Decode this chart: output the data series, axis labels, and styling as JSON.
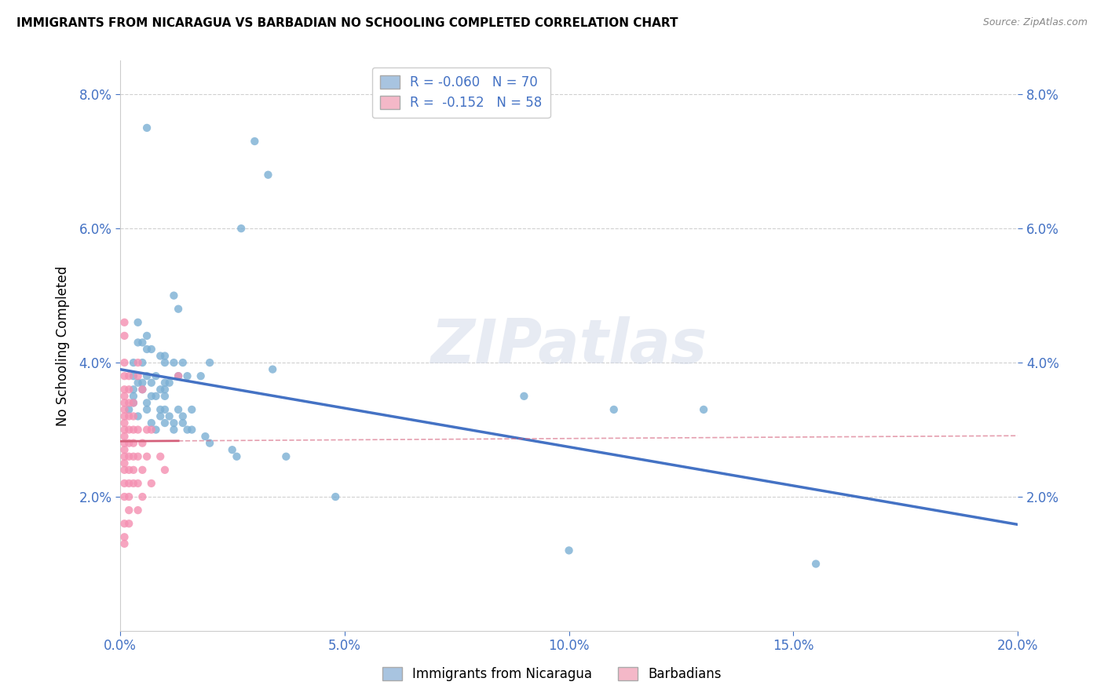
{
  "title": "IMMIGRANTS FROM NICARAGUA VS BARBADIAN NO SCHOOLING COMPLETED CORRELATION CHART",
  "source": "Source: ZipAtlas.com",
  "xlabel_ticks": [
    "0.0%",
    "5.0%",
    "10.0%",
    "15.0%",
    "20.0%"
  ],
  "ylabel_ticks": [
    "2.0%",
    "4.0%",
    "6.0%",
    "8.0%"
  ],
  "ylabel_label": "No Schooling Completed",
  "xlim": [
    0.0,
    0.2
  ],
  "ylim": [
    0.0,
    0.085
  ],
  "blue_color": "#7bafd4",
  "pink_color": "#f48fb1",
  "blue_line_color": "#4472c4",
  "pink_line_color": "#d45f7a",
  "legend_blue_fill": "#a8c4e0",
  "legend_pink_fill": "#f4b8c8",
  "blue_scatter": [
    [
      0.006,
      0.075
    ],
    [
      0.03,
      0.073
    ],
    [
      0.033,
      0.068
    ],
    [
      0.027,
      0.06
    ],
    [
      0.012,
      0.05
    ],
    [
      0.013,
      0.048
    ],
    [
      0.004,
      0.046
    ],
    [
      0.006,
      0.044
    ],
    [
      0.005,
      0.043
    ],
    [
      0.004,
      0.043
    ],
    [
      0.006,
      0.042
    ],
    [
      0.007,
      0.042
    ],
    [
      0.009,
      0.041
    ],
    [
      0.01,
      0.041
    ],
    [
      0.003,
      0.04
    ],
    [
      0.005,
      0.04
    ],
    [
      0.01,
      0.04
    ],
    [
      0.012,
      0.04
    ],
    [
      0.014,
      0.04
    ],
    [
      0.02,
      0.04
    ],
    [
      0.034,
      0.039
    ],
    [
      0.003,
      0.038
    ],
    [
      0.006,
      0.038
    ],
    [
      0.008,
      0.038
    ],
    [
      0.013,
      0.038
    ],
    [
      0.015,
      0.038
    ],
    [
      0.018,
      0.038
    ],
    [
      0.004,
      0.037
    ],
    [
      0.005,
      0.037
    ],
    [
      0.007,
      0.037
    ],
    [
      0.01,
      0.037
    ],
    [
      0.011,
      0.037
    ],
    [
      0.003,
      0.036
    ],
    [
      0.005,
      0.036
    ],
    [
      0.009,
      0.036
    ],
    [
      0.01,
      0.036
    ],
    [
      0.003,
      0.035
    ],
    [
      0.007,
      0.035
    ],
    [
      0.008,
      0.035
    ],
    [
      0.01,
      0.035
    ],
    [
      0.003,
      0.034
    ],
    [
      0.006,
      0.034
    ],
    [
      0.002,
      0.033
    ],
    [
      0.006,
      0.033
    ],
    [
      0.009,
      0.033
    ],
    [
      0.01,
      0.033
    ],
    [
      0.013,
      0.033
    ],
    [
      0.016,
      0.033
    ],
    [
      0.004,
      0.032
    ],
    [
      0.009,
      0.032
    ],
    [
      0.011,
      0.032
    ],
    [
      0.014,
      0.032
    ],
    [
      0.007,
      0.031
    ],
    [
      0.01,
      0.031
    ],
    [
      0.012,
      0.031
    ],
    [
      0.014,
      0.031
    ],
    [
      0.008,
      0.03
    ],
    [
      0.012,
      0.03
    ],
    [
      0.015,
      0.03
    ],
    [
      0.016,
      0.03
    ],
    [
      0.019,
      0.029
    ],
    [
      0.02,
      0.028
    ],
    [
      0.025,
      0.027
    ],
    [
      0.026,
      0.026
    ],
    [
      0.037,
      0.026
    ],
    [
      0.09,
      0.035
    ],
    [
      0.11,
      0.033
    ],
    [
      0.13,
      0.033
    ],
    [
      0.155,
      0.01
    ],
    [
      0.1,
      0.012
    ],
    [
      0.048,
      0.02
    ]
  ],
  "pink_scatter": [
    [
      0.001,
      0.046
    ],
    [
      0.001,
      0.044
    ],
    [
      0.001,
      0.04
    ],
    [
      0.001,
      0.038
    ],
    [
      0.001,
      0.036
    ],
    [
      0.001,
      0.035
    ],
    [
      0.001,
      0.034
    ],
    [
      0.001,
      0.033
    ],
    [
      0.001,
      0.032
    ],
    [
      0.001,
      0.031
    ],
    [
      0.001,
      0.03
    ],
    [
      0.001,
      0.029
    ],
    [
      0.001,
      0.028
    ],
    [
      0.001,
      0.027
    ],
    [
      0.001,
      0.026
    ],
    [
      0.001,
      0.025
    ],
    [
      0.001,
      0.024
    ],
    [
      0.001,
      0.022
    ],
    [
      0.001,
      0.02
    ],
    [
      0.001,
      0.016
    ],
    [
      0.001,
      0.014
    ],
    [
      0.001,
      0.013
    ],
    [
      0.002,
      0.038
    ],
    [
      0.002,
      0.036
    ],
    [
      0.002,
      0.034
    ],
    [
      0.002,
      0.032
    ],
    [
      0.002,
      0.03
    ],
    [
      0.002,
      0.028
    ],
    [
      0.002,
      0.026
    ],
    [
      0.002,
      0.024
    ],
    [
      0.002,
      0.022
    ],
    [
      0.002,
      0.02
    ],
    [
      0.002,
      0.018
    ],
    [
      0.002,
      0.016
    ],
    [
      0.003,
      0.034
    ],
    [
      0.003,
      0.032
    ],
    [
      0.003,
      0.03
    ],
    [
      0.003,
      0.028
    ],
    [
      0.003,
      0.026
    ],
    [
      0.003,
      0.024
    ],
    [
      0.003,
      0.022
    ],
    [
      0.004,
      0.04
    ],
    [
      0.004,
      0.038
    ],
    [
      0.004,
      0.03
    ],
    [
      0.004,
      0.026
    ],
    [
      0.004,
      0.022
    ],
    [
      0.004,
      0.018
    ],
    [
      0.005,
      0.036
    ],
    [
      0.005,
      0.028
    ],
    [
      0.005,
      0.024
    ],
    [
      0.005,
      0.02
    ],
    [
      0.006,
      0.03
    ],
    [
      0.006,
      0.026
    ],
    [
      0.007,
      0.03
    ],
    [
      0.007,
      0.022
    ],
    [
      0.009,
      0.026
    ],
    [
      0.01,
      0.024
    ],
    [
      0.013,
      0.038
    ]
  ],
  "watermark": "ZIPatlas",
  "background_color": "#ffffff",
  "grid_color": "#d0d0d0"
}
